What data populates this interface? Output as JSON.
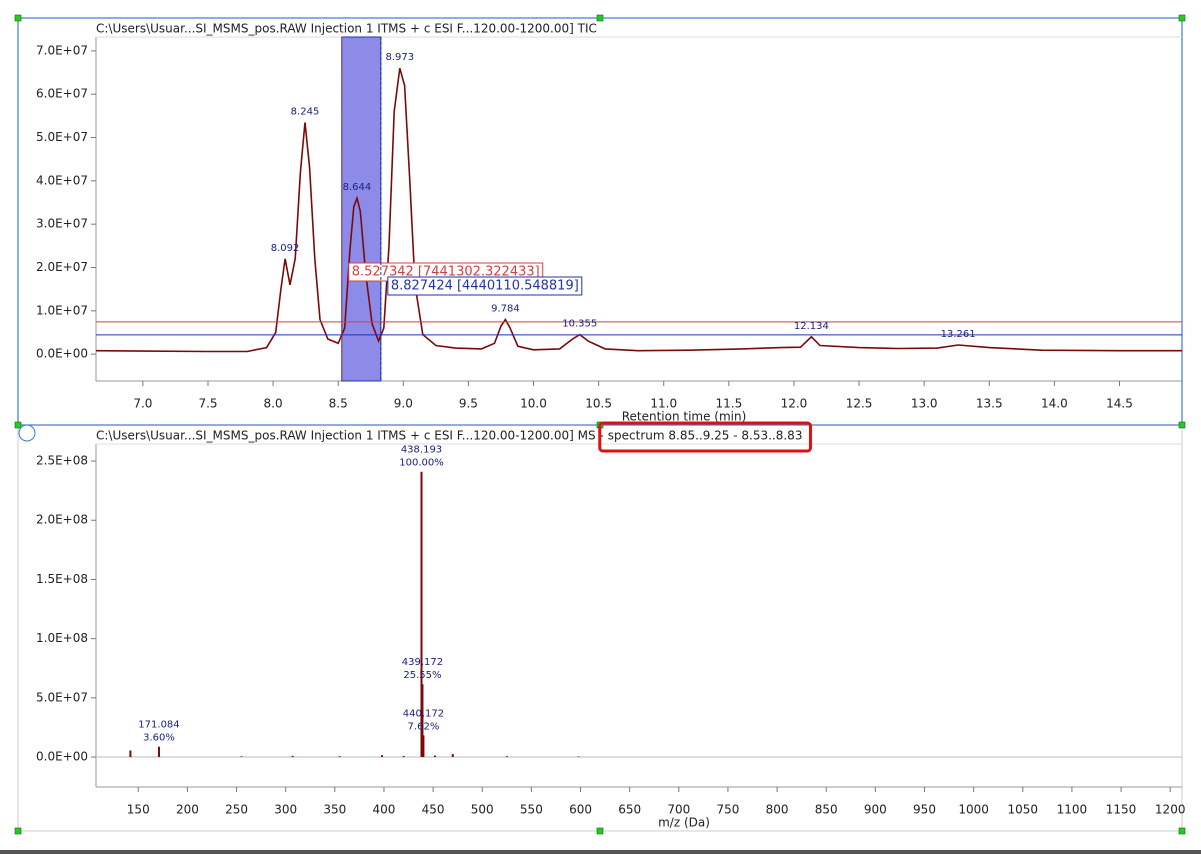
{
  "chart_data": [
    {
      "type": "line",
      "title": "C:\\Users\\Usuar...SI_MSMS_pos.RAW Injection 1 ITMS + c ESI F...120.00-1200.00] TIC",
      "x_label": "Retention time (min)",
      "color": "#7a0a0a",
      "x": [
        6.64,
        7.0,
        7.5,
        7.8,
        7.95,
        8.02,
        8.06,
        8.092,
        8.13,
        8.17,
        8.21,
        8.245,
        8.28,
        8.32,
        8.36,
        8.42,
        8.5,
        8.55,
        8.59,
        8.62,
        8.644,
        8.67,
        8.71,
        8.76,
        8.81,
        8.85,
        8.89,
        8.93,
        8.973,
        9.01,
        9.05,
        9.09,
        9.15,
        9.25,
        9.4,
        9.6,
        9.7,
        9.75,
        9.784,
        9.82,
        9.88,
        10.0,
        10.2,
        10.3,
        10.355,
        10.42,
        10.55,
        10.8,
        11.2,
        11.6,
        11.9,
        12.05,
        12.134,
        12.2,
        12.5,
        12.8,
        13.1,
        13.261,
        13.5,
        13.9,
        14.5,
        14.98
      ],
      "values": [
        800000,
        700000,
        600000,
        600000,
        1500000,
        5000000,
        15000000,
        22000000,
        16000000,
        22000000,
        42000000,
        53500000,
        43000000,
        22000000,
        8000000,
        3500000,
        2500000,
        6000000,
        24000000,
        34000000,
        36000000,
        33000000,
        19000000,
        7000000,
        3000000,
        6000000,
        25000000,
        56000000,
        66000000,
        62000000,
        40000000,
        16000000,
        4500000,
        2000000,
        1400000,
        1200000,
        2500000,
        6500000,
        8000000,
        6000000,
        1800000,
        1000000,
        1200000,
        3500000,
        4500000,
        3000000,
        1200000,
        800000,
        900000,
        1200000,
        1500000,
        1600000,
        4000000,
        2000000,
        1500000,
        1300000,
        1400000,
        2100000,
        1500000,
        900000,
        800000,
        800000
      ],
      "peaks": {
        "x": [
          8.092,
          8.245,
          8.644,
          8.973,
          9.784,
          10.355,
          12.134,
          13.261
        ],
        "values": [
          22000000,
          53500000,
          36000000,
          66000000,
          8000000,
          4500000,
          4000000,
          2100000
        ]
      },
      "cursors": [
        {
          "x": 8.527342,
          "y": 7441302.322433,
          "label": "8.527342 [7441302.322433]",
          "color": "#d04040"
        },
        {
          "x": 8.827424,
          "y": 4440110.548819,
          "label": "8.827424 [4440110.548819]",
          "color": "#2233aa"
        }
      ],
      "selection_color": "#8c8ce8",
      "xlim": [
        6.64,
        14.98
      ],
      "ylim": [
        -6200000,
        73200000
      ],
      "xticks": [
        {
          "value": 7,
          "label": "7.0"
        },
        7.5,
        {
          "value": 8,
          "label": "8.0"
        },
        8.5,
        {
          "value": 9,
          "label": "9.0"
        },
        9.5,
        {
          "value": 10,
          "label": "10.0"
        },
        10.5,
        {
          "value": 11,
          "label": "11.0"
        },
        11.5,
        {
          "value": 12,
          "label": "12.0"
        },
        12.5,
        {
          "value": 13,
          "label": "13.0"
        },
        13.5,
        {
          "value": 14,
          "label": "14.0"
        },
        14.5
      ],
      "yticks": [
        {
          "value": 0,
          "label": "0.0E+00"
        },
        {
          "value": 10000000,
          "label": "1.0E+07"
        },
        {
          "value": 20000000,
          "label": "2.0E+07"
        },
        {
          "value": 30000000,
          "label": "3.0E+07"
        },
        {
          "value": 40000000,
          "label": "4.0E+07"
        },
        {
          "value": 50000000,
          "label": "5.0E+07"
        },
        {
          "value": 60000000,
          "label": "6.0E+07"
        },
        {
          "value": 70000000,
          "label": "7.0E+07"
        }
      ]
    },
    {
      "type": "bar",
      "title": "C:\\Users\\Usuar...SI_MSMS_pos.RAW Injection 1 ITMS + c ESI F...120.00-1200.00] MS - ",
      "title_highlight": "spectrum 8.85..9.25 - 8.53..8.83",
      "x_label": "m/z (Da)",
      "color": "#7a0a0a",
      "x": [
        142,
        171.084,
        255,
        307,
        355,
        398,
        420,
        438.193,
        439.172,
        440.172,
        452,
        470,
        525,
        598
      ],
      "values": [
        5500000,
        8700000,
        600000,
        1000000,
        700000,
        1500000,
        900000,
        241000000,
        61500000,
        18300000,
        1200000,
        2500000,
        700000,
        500000
      ],
      "percent_labels": [
        null,
        "3.60%",
        null,
        null,
        null,
        null,
        null,
        "100.00%",
        "25.55%",
        "7.62%",
        null,
        null,
        null,
        null
      ],
      "xlim": [
        107,
        1212
      ],
      "ylim": [
        -25300000,
        264400000
      ],
      "xticks": [
        150,
        200,
        250,
        300,
        350,
        400,
        450,
        500,
        550,
        600,
        650,
        700,
        750,
        800,
        850,
        900,
        950,
        1000,
        1050,
        1100,
        1150,
        1200
      ],
      "yticks": [
        {
          "value": 0,
          "label": "0.0E+00"
        },
        {
          "value": 50000000,
          "label": "5.0E+07"
        },
        {
          "value": 100000000,
          "label": "1.0E+08"
        },
        {
          "value": 150000000,
          "label": "1.5E+08"
        },
        {
          "value": 200000000,
          "label": "2.0E+08"
        },
        {
          "value": 250000000,
          "label": "2.5E+08"
        }
      ],
      "zero_line": true
    }
  ]
}
